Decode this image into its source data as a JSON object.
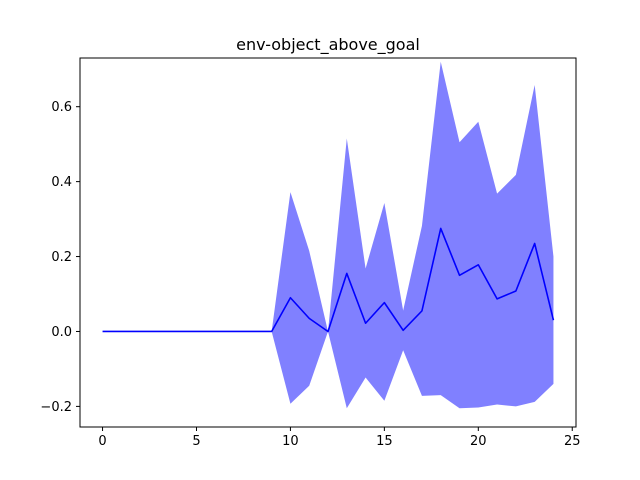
{
  "chart_data": {
    "type": "line",
    "title": "env-object_above_goal",
    "xlabel": "",
    "ylabel": "",
    "xlim": [
      -1.2,
      25.2
    ],
    "ylim": [
      -0.255,
      0.73
    ],
    "x_ticks": [
      0,
      5,
      10,
      15,
      20,
      25
    ],
    "x_tick_labels": [
      "0",
      "5",
      "10",
      "15",
      "20",
      "25"
    ],
    "y_ticks": [
      -0.2,
      0.0,
      0.2,
      0.4,
      0.6
    ],
    "y_tick_labels": [
      "−0.2",
      "0.0",
      "0.2",
      "0.4",
      "0.6"
    ],
    "grid": false,
    "legend": "none",
    "x": [
      0,
      1,
      2,
      3,
      4,
      5,
      6,
      7,
      8,
      9,
      10,
      11,
      12,
      13,
      14,
      15,
      16,
      17,
      18,
      19,
      20,
      21,
      22,
      23,
      24
    ],
    "series": [
      {
        "values": [
          0,
          0,
          0,
          0,
          0,
          0,
          0,
          0,
          0,
          0,
          0.09,
          0.035,
          0.0,
          0.155,
          0.022,
          0.077,
          0.003,
          0.055,
          0.275,
          0.15,
          0.178,
          0.087,
          0.108,
          0.235,
          0.03
        ],
        "lower": [
          0,
          0,
          0,
          0,
          0,
          0,
          0,
          0,
          0,
          0,
          -0.193,
          -0.145,
          0.0,
          -0.205,
          -0.123,
          -0.185,
          -0.05,
          -0.172,
          -0.17,
          -0.205,
          -0.203,
          -0.195,
          -0.2,
          -0.188,
          -0.14
        ],
        "upper": [
          0,
          0,
          0,
          0,
          0,
          0,
          0,
          0,
          0,
          0,
          0.372,
          0.215,
          0.0,
          0.515,
          0.168,
          0.343,
          0.056,
          0.282,
          0.72,
          0.505,
          0.56,
          0.368,
          0.418,
          0.658,
          0.2
        ],
        "color": "#0000ff",
        "band_color": "#8080ff"
      }
    ]
  }
}
